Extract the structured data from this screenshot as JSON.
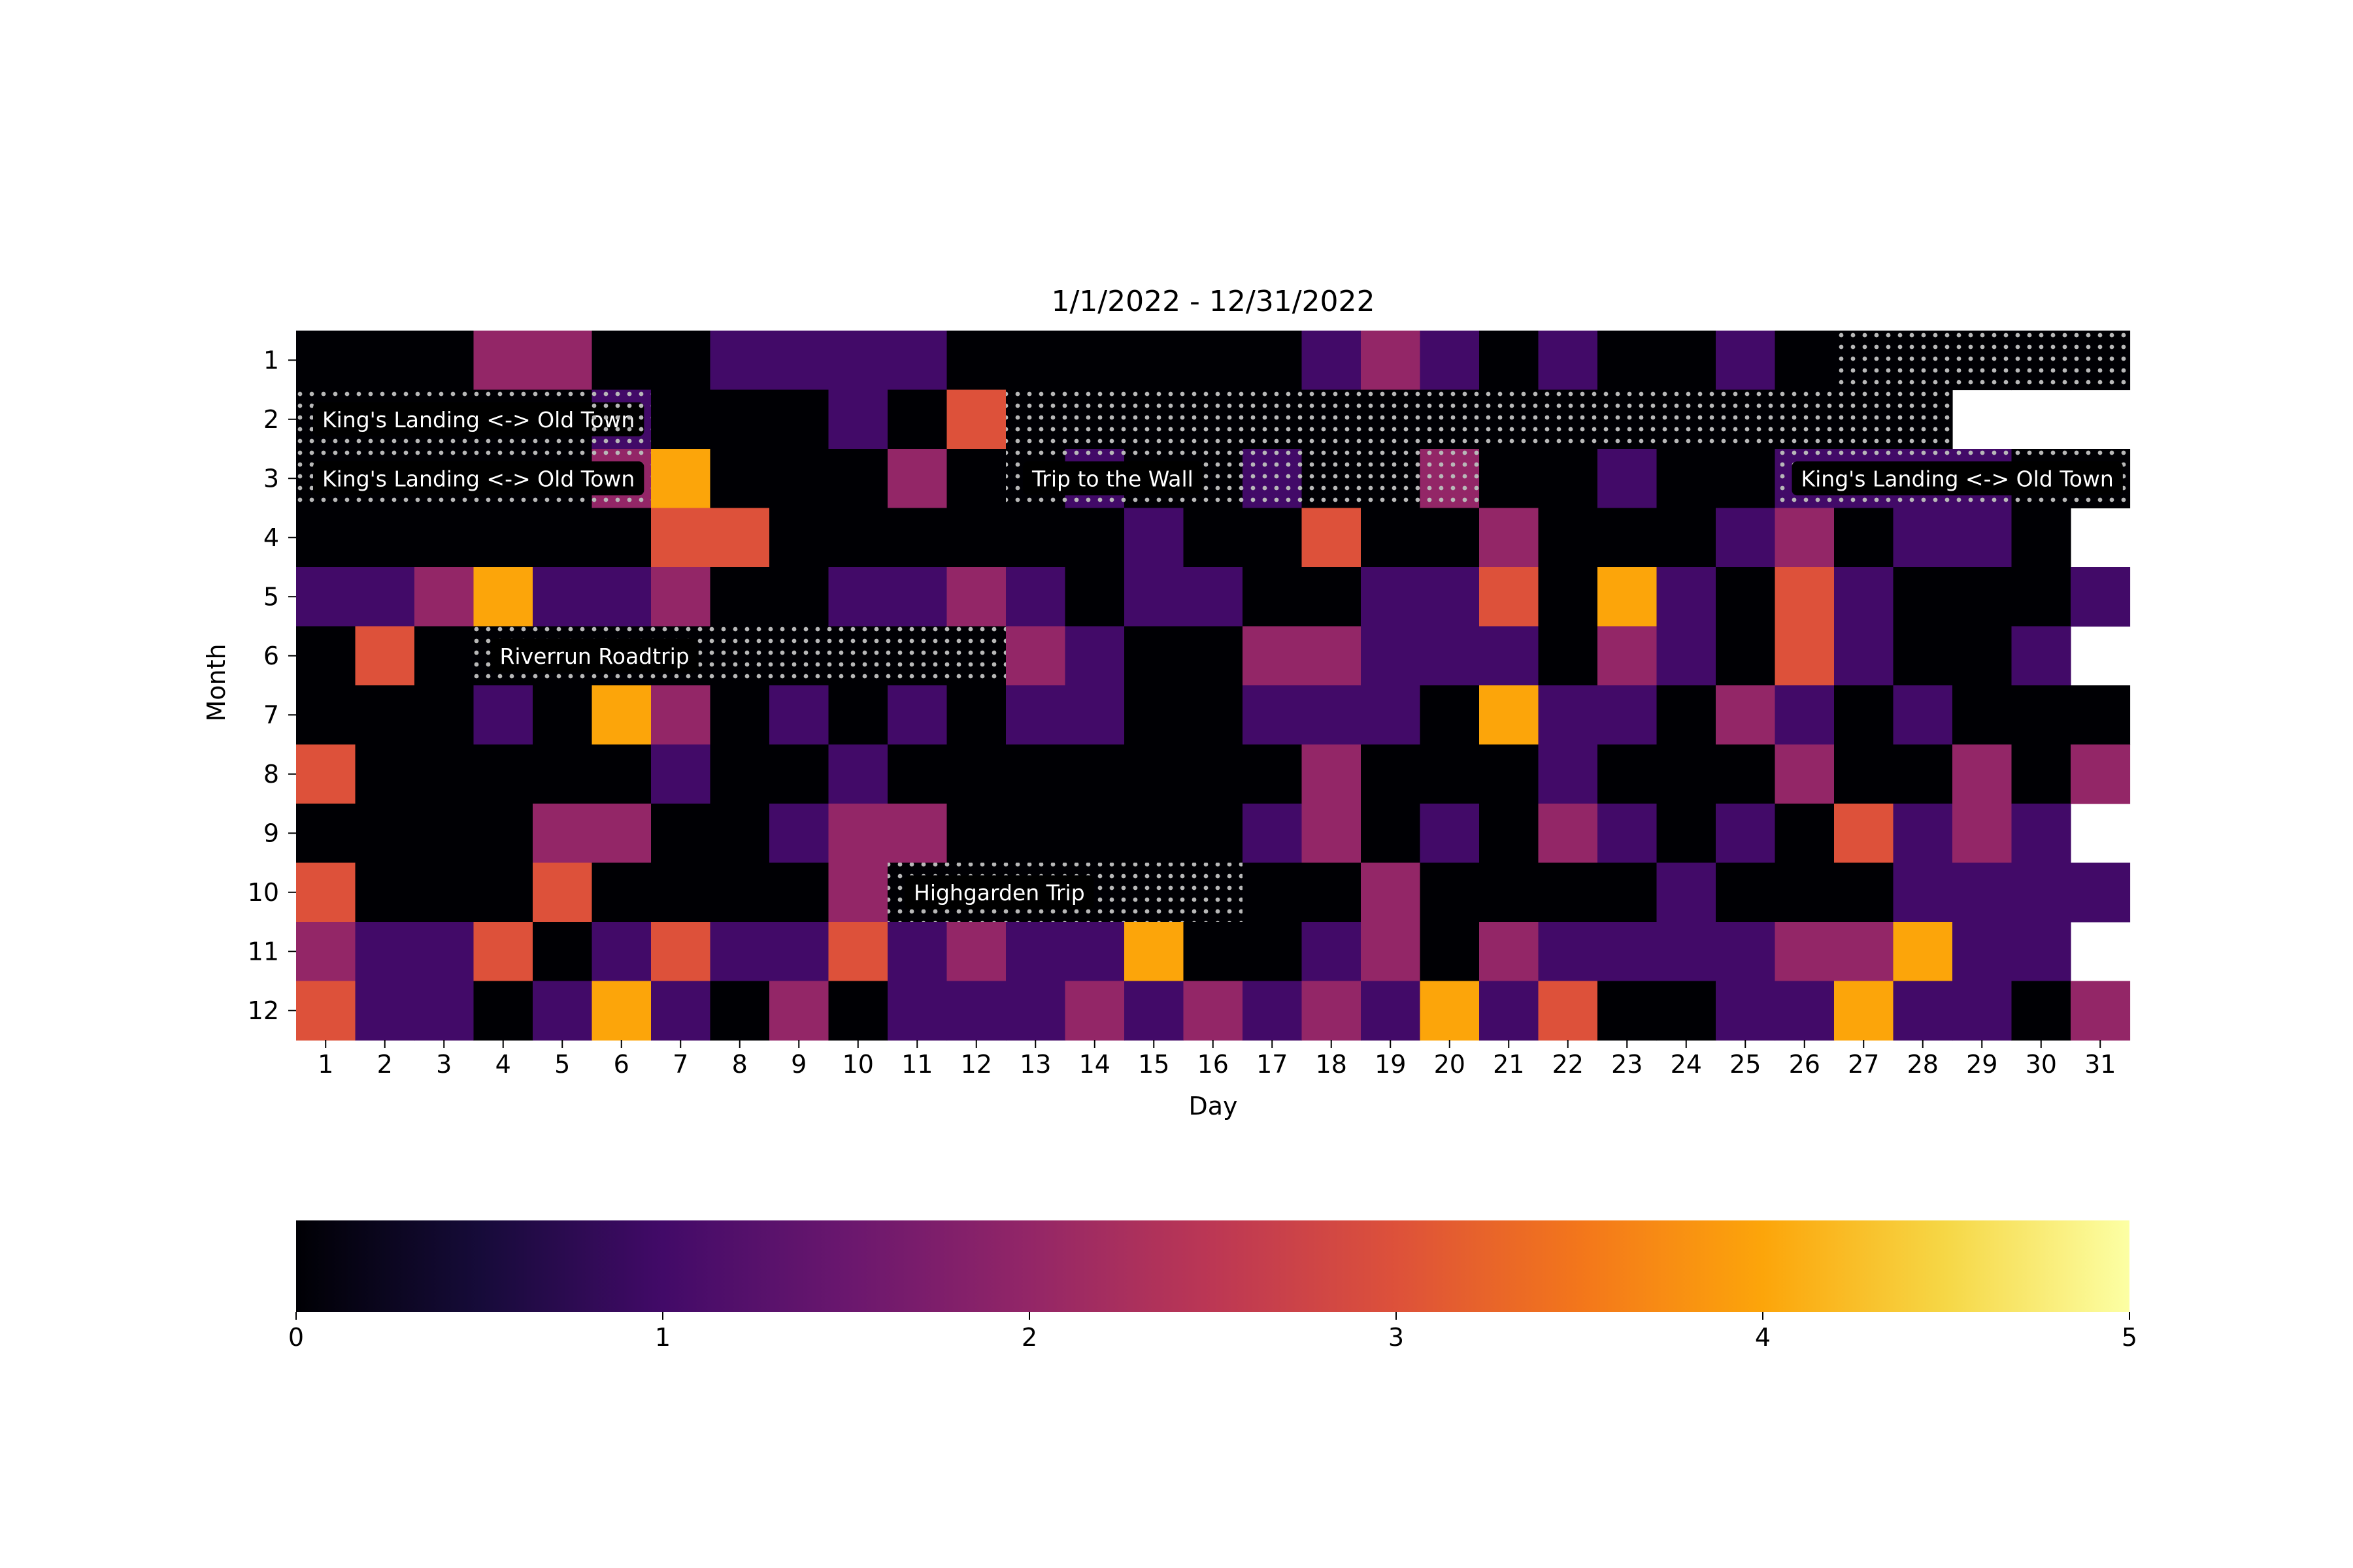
{
  "chart_data": {
    "type": "heatmap",
    "title": "1/1/2022 - 12/31/2022",
    "xlabel": "Day",
    "ylabel": "Month",
    "x_ticks": [
      "1",
      "2",
      "3",
      "4",
      "5",
      "6",
      "7",
      "8",
      "9",
      "10",
      "11",
      "12",
      "13",
      "14",
      "15",
      "16",
      "17",
      "18",
      "19",
      "20",
      "21",
      "22",
      "23",
      "24",
      "25",
      "26",
      "27",
      "28",
      "29",
      "30",
      "31"
    ],
    "y_ticks": [
      "1",
      "2",
      "3",
      "4",
      "5",
      "6",
      "7",
      "8",
      "9",
      "10",
      "11",
      "12"
    ],
    "colormap": "inferno",
    "colorbar": {
      "min": 0,
      "max": 5,
      "ticks": [
        "0",
        "1",
        "2",
        "3",
        "4",
        "5"
      ],
      "orientation": "horizontal",
      "placement": "bottom"
    },
    "values": [
      [
        0,
        0,
        0,
        2,
        2,
        0,
        0,
        1,
        1,
        1,
        1,
        0,
        0,
        0,
        0,
        0,
        0,
        1,
        2,
        1,
        0,
        1,
        0,
        0,
        1,
        0,
        0,
        0,
        0,
        0,
        0
      ],
      [
        0,
        0,
        0,
        0,
        0,
        1,
        0,
        0,
        0,
        1,
        0,
        3,
        0,
        0,
        0,
        0,
        0,
        0,
        0,
        0,
        0,
        0,
        0,
        0,
        0,
        0,
        0,
        0,
        null,
        null,
        null
      ],
      [
        0,
        0,
        0,
        0,
        0,
        2,
        4,
        0,
        0,
        0,
        2,
        0,
        0,
        1,
        0,
        0,
        1,
        0,
        0,
        2,
        0,
        0,
        1,
        0,
        0,
        1,
        1,
        1,
        1,
        0,
        0
      ],
      [
        0,
        0,
        0,
        0,
        0,
        0,
        3,
        3,
        0,
        0,
        0,
        0,
        0,
        0,
        1,
        0,
        0,
        3,
        0,
        0,
        2,
        0,
        0,
        0,
        1,
        2,
        0,
        1,
        1,
        0,
        null
      ],
      [
        1,
        1,
        2,
        4,
        1,
        1,
        2,
        0,
        0,
        1,
        1,
        2,
        1,
        0,
        1,
        1,
        0,
        0,
        1,
        1,
        3,
        0,
        4,
        1,
        0,
        3,
        1,
        0,
        0,
        0,
        1
      ],
      [
        0,
        3,
        0,
        0,
        0,
        0,
        0,
        0,
        0,
        0,
        0,
        0,
        2,
        1,
        0,
        0,
        2,
        2,
        1,
        1,
        1,
        0,
        2,
        1,
        0,
        3,
        1,
        0,
        0,
        1,
        null
      ],
      [
        0,
        0,
        0,
        1,
        0,
        4,
        2,
        0,
        1,
        0,
        1,
        0,
        1,
        1,
        0,
        0,
        1,
        1,
        1,
        0,
        4,
        1,
        1,
        0,
        2,
        1,
        0,
        1,
        0,
        0,
        0
      ],
      [
        3,
        0,
        0,
        0,
        0,
        0,
        1,
        0,
        0,
        1,
        0,
        0,
        0,
        0,
        0,
        0,
        0,
        2,
        0,
        0,
        0,
        1,
        0,
        0,
        0,
        2,
        0,
        0,
        2,
        0,
        2
      ],
      [
        0,
        0,
        0,
        0,
        2,
        2,
        0,
        0,
        1,
        2,
        2,
        0,
        0,
        0,
        0,
        0,
        1,
        2,
        0,
        1,
        0,
        2,
        1,
        0,
        1,
        0,
        3,
        1,
        2,
        1,
        null
      ],
      [
        3,
        0,
        0,
        0,
        3,
        0,
        0,
        0,
        0,
        2,
        0,
        0,
        0,
        0,
        0,
        0,
        0,
        0,
        2,
        0,
        0,
        0,
        0,
        1,
        0,
        0,
        0,
        1,
        1,
        1,
        1
      ],
      [
        2,
        1,
        1,
        3,
        0,
        1,
        3,
        1,
        1,
        3,
        1,
        2,
        1,
        1,
        4,
        0,
        0,
        1,
        2,
        0,
        2,
        1,
        1,
        1,
        1,
        2,
        2,
        4,
        1,
        1,
        null
      ],
      [
        3,
        1,
        1,
        0,
        1,
        4,
        1,
        0,
        2,
        0,
        1,
        1,
        1,
        2,
        1,
        2,
        1,
        2,
        1,
        4,
        1,
        3,
        0,
        0,
        1,
        1,
        4,
        1,
        1,
        0,
        2
      ]
    ],
    "trips": [
      {
        "label": "King's Landing <-> Old Town",
        "segments": [
          {
            "month": 1,
            "start_day": 27,
            "end_day": 31
          },
          {
            "month": 2,
            "start_day": 1,
            "end_day": 5
          }
        ]
      },
      {
        "label": "King's Landing <-> Old Town",
        "segments": [
          {
            "month": 2,
            "start_day": 6,
            "end_day": 6
          },
          {
            "month": 2,
            "start_day": 13,
            "end_day": 28
          },
          {
            "month": 3,
            "start_day": 1,
            "end_day": 6
          }
        ]
      },
      {
        "label": "Trip to the Wall",
        "segments": [
          {
            "month": 3,
            "start_day": 13,
            "end_day": 20
          }
        ]
      },
      {
        "label": "King's Landing <-> Old Town",
        "segments": [
          {
            "month": 3,
            "start_day": 26,
            "end_day": 31
          }
        ]
      },
      {
        "label": "Riverrun Roadtrip",
        "segments": [
          {
            "month": 6,
            "start_day": 4,
            "end_day": 12
          }
        ]
      },
      {
        "label": "Highgarden Trip",
        "segments": [
          {
            "month": 10,
            "start_day": 11,
            "end_day": 16
          }
        ]
      }
    ]
  }
}
